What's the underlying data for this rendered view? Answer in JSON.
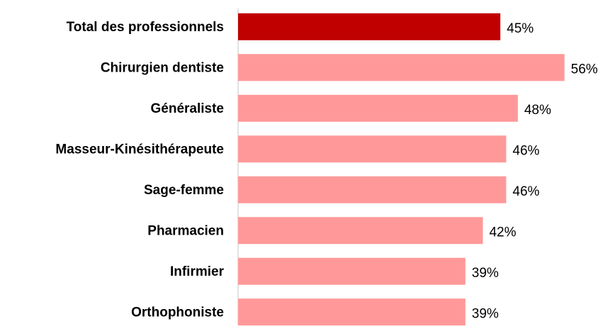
{
  "chart_data": {
    "type": "barh",
    "categories": [
      "Total des professionnels",
      "Chirurgien dentiste",
      "Généraliste",
      "Masseur-Kinésithérapeute",
      "Sage-femme",
      "Pharmacien",
      "Infirmier",
      "Orthophoniste"
    ],
    "values": [
      45,
      56,
      48,
      46,
      46,
      42,
      39,
      39
    ],
    "value_labels": [
      "45%",
      "56%",
      "48%",
      "46%",
      "46%",
      "42%",
      "39%",
      "39%"
    ],
    "colors": [
      "#c00000",
      "#ff9999",
      "#ff9999",
      "#ff9999",
      "#ff9999",
      "#ff9999",
      "#ff9999",
      "#ff9999"
    ],
    "xlim": [
      0,
      62
    ]
  }
}
